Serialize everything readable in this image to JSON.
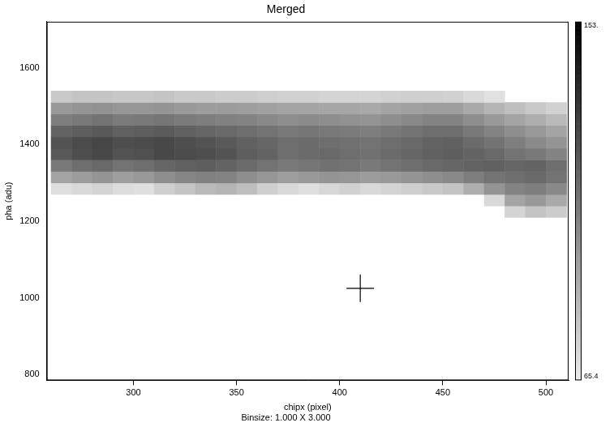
{
  "chart_data": {
    "type": "heatmap",
    "title": "Merged",
    "subtitle": "Binsize: 1.000 X 3.000",
    "x_label": "chipx (pixel)",
    "y_label": "pha (adu)",
    "xlim": [
      258,
      511
    ],
    "ylim": [
      785,
      1720
    ],
    "xticks": [
      300,
      350,
      400,
      450,
      500
    ],
    "yticks": [
      800,
      1000,
      1200,
      1400,
      1600
    ],
    "grid": false,
    "x_edges": [
      260,
      270,
      280,
      290,
      300,
      310,
      320,
      330,
      340,
      350,
      360,
      370,
      380,
      390,
      400,
      410,
      420,
      430,
      440,
      450,
      460,
      470,
      480,
      490,
      500,
      510
    ],
    "y_edges": [
      1210,
      1240,
      1270,
      1300,
      1330,
      1360,
      1390,
      1420,
      1450,
      1480,
      1510,
      1540
    ],
    "cells": [
      [
        null,
        null,
        null,
        null,
        null,
        null,
        null,
        null,
        null,
        null,
        null,
        null,
        null,
        null,
        null,
        null,
        null,
        null,
        null,
        null,
        null,
        null,
        74,
        80,
        77
      ],
      [
        null,
        null,
        null,
        null,
        null,
        null,
        null,
        null,
        null,
        null,
        null,
        null,
        null,
        null,
        null,
        null,
        null,
        null,
        null,
        null,
        null,
        72,
        92,
        96,
        90
      ],
      [
        70,
        72,
        74,
        71,
        70,
        76,
        80,
        84,
        86,
        82,
        76,
        72,
        70,
        73,
        75,
        72,
        74,
        76,
        78,
        80,
        88,
        98,
        104,
        106,
        102
      ],
      [
        92,
        95,
        98,
        94,
        96,
        100,
        103,
        105,
        104,
        100,
        97,
        94,
        96,
        98,
        97,
        95,
        96,
        98,
        100,
        102,
        106,
        110,
        112,
        114,
        110
      ],
      [
        108,
        112,
        114,
        110,
        112,
        115,
        117,
        118,
        116,
        113,
        110,
        108,
        109,
        111,
        110,
        108,
        110,
        112,
        114,
        115,
        116,
        117,
        115,
        116,
        112
      ],
      [
        120,
        124,
        126,
        122,
        123,
        126,
        125,
        124,
        122,
        118,
        116,
        112,
        113,
        114,
        112,
        111,
        113,
        115,
        117,
        118,
        116,
        114,
        110,
        108,
        104
      ],
      [
        122,
        125,
        127,
        124,
        125,
        126,
        124,
        122,
        120,
        117,
        115,
        112,
        113,
        112,
        111,
        110,
        112,
        114,
        116,
        117,
        113,
        110,
        106,
        102,
        98
      ],
      [
        116,
        118,
        120,
        117,
        118,
        119,
        117,
        115,
        114,
        112,
        110,
        108,
        109,
        108,
        107,
        106,
        108,
        110,
        112,
        112,
        108,
        104,
        100,
        96,
        92
      ],
      [
        106,
        108,
        110,
        107,
        108,
        109,
        107,
        106,
        105,
        104,
        102,
        100,
        101,
        100,
        99,
        98,
        100,
        102,
        104,
        104,
        100,
        96,
        92,
        88,
        84
      ],
      [
        96,
        98,
        99,
        97,
        97,
        98,
        96,
        95,
        95,
        94,
        93,
        92,
        92,
        91,
        91,
        90,
        92,
        93,
        94,
        94,
        90,
        86,
        82,
        78,
        75
      ],
      [
        78,
        80,
        80,
        79,
        79,
        80,
        78,
        78,
        77,
        77,
        76,
        75,
        75,
        74,
        74,
        74,
        75,
        76,
        76,
        75,
        72,
        69,
        null,
        null,
        null
      ]
    ],
    "colorbar": {
      "range": [
        65.4,
        153
      ],
      "ticks": [
        65.4,
        {
          "value": 153,
          "label": "153."
        }
      ]
    },
    "points": [
      {
        "x": 410,
        "y": 1025,
        "marker": "cross",
        "color": "#000000"
      }
    ]
  }
}
